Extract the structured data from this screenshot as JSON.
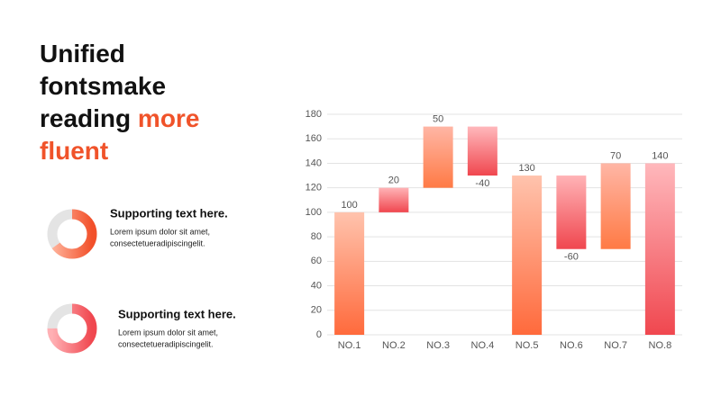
{
  "slide": {
    "title": "Unified fontsmake reading",
    "title_highlight": "more fluent",
    "items": [
      {
        "heading": "Supporting text here.",
        "lines": [
          "Lorem ipsum dolor sit amet,",
          "consectetueradipiscingelit."
        ],
        "percent": 65,
        "colors": [
          "#ffb39b",
          "#f2502a"
        ]
      },
      {
        "heading": "Supporting text here.",
        "lines": [
          "Lorem ipsum dolor sit amet,",
          "consectetueradipiscingelit."
        ],
        "percent": 75,
        "colors": [
          "#ffb0b4",
          "#f0474f"
        ]
      }
    ]
  },
  "chart_data": {
    "type": "waterfall",
    "categories": [
      "NO.1",
      "NO.2",
      "NO.3",
      "NO.4",
      "NO.5",
      "NO.6",
      "NO.7",
      "NO.8"
    ],
    "values": [
      100,
      20,
      50,
      -40,
      130,
      -60,
      70,
      140
    ],
    "measure": [
      "absolute",
      "relative",
      "relative",
      "relative",
      "absolute",
      "relative",
      "relative",
      "absolute"
    ],
    "colors": [
      [
        "#ffc3ad",
        "#ff6a3c"
      ],
      [
        "#ffb3b6",
        "#f0474f"
      ],
      [
        "#ffb6a5",
        "#ff7a45"
      ],
      [
        "#ffb8bc",
        "#f0474f"
      ],
      [
        "#ffc3ad",
        "#ff6a3c"
      ],
      [
        "#ffb3b6",
        "#f0474f"
      ],
      [
        "#ffb6a5",
        "#ff7a45"
      ],
      [
        "#ffb8bc",
        "#f0474f"
      ]
    ],
    "ylim": [
      0,
      180
    ],
    "yticks": [
      0,
      20,
      40,
      60,
      80,
      100,
      120,
      140,
      160,
      180
    ],
    "grid": true
  }
}
